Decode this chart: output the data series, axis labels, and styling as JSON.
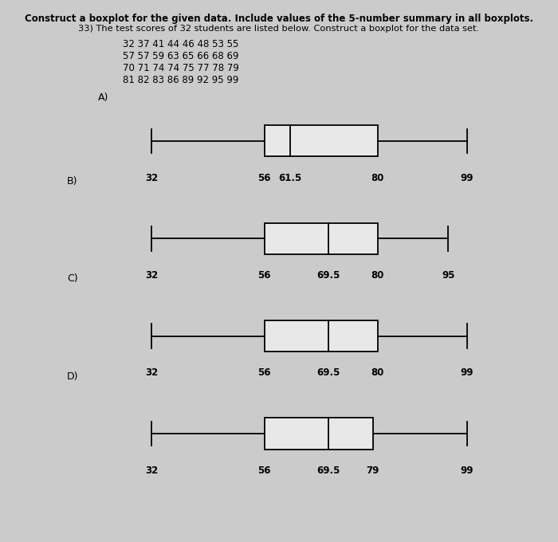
{
  "title_line1": "Construct a boxplot for the given data. Include values of the 5-number summary in all boxplots.",
  "title_line2": "33) The test scores of 32 students are listed below. Construct a boxplot for the data set.",
  "data_lines": [
    "32 37 41 44 46 48 53 55",
    "57 57 59 63 65 66 68 69",
    "70 71 74 74 75 77 78 79",
    "81 82 83 86 89 92 95 99"
  ],
  "boxplots": [
    {
      "label": "A)",
      "min": 32,
      "q1": 56,
      "median": 61.5,
      "q3": 80,
      "max": 99,
      "tick_labels": [
        "32",
        "56",
        "61.5",
        "80",
        "99"
      ]
    },
    {
      "label": "B)",
      "min": 32,
      "q1": 56,
      "median": 69.5,
      "q3": 80,
      "max": 95,
      "tick_labels": [
        "32",
        "56",
        "69.5",
        "80",
        "95"
      ]
    },
    {
      "label": "C)",
      "min": 32,
      "q1": 56,
      "median": 69.5,
      "q3": 80,
      "max": 99,
      "tick_labels": [
        "32",
        "56",
        "69.5",
        "80",
        "99"
      ]
    },
    {
      "label": "D)",
      "min": 32,
      "q1": 56,
      "median": 69.5,
      "q3": 79,
      "max": 99,
      "tick_labels": [
        "32",
        "56",
        "69.5",
        "79",
        "99"
      ]
    }
  ],
  "background_color": "#cbcbcb",
  "box_facecolor": "#e8e8e8",
  "box_edgecolor": "#000000",
  "whisker_color": "#000000",
  "text_color": "#000000",
  "xlim": [
    20,
    110
  ]
}
